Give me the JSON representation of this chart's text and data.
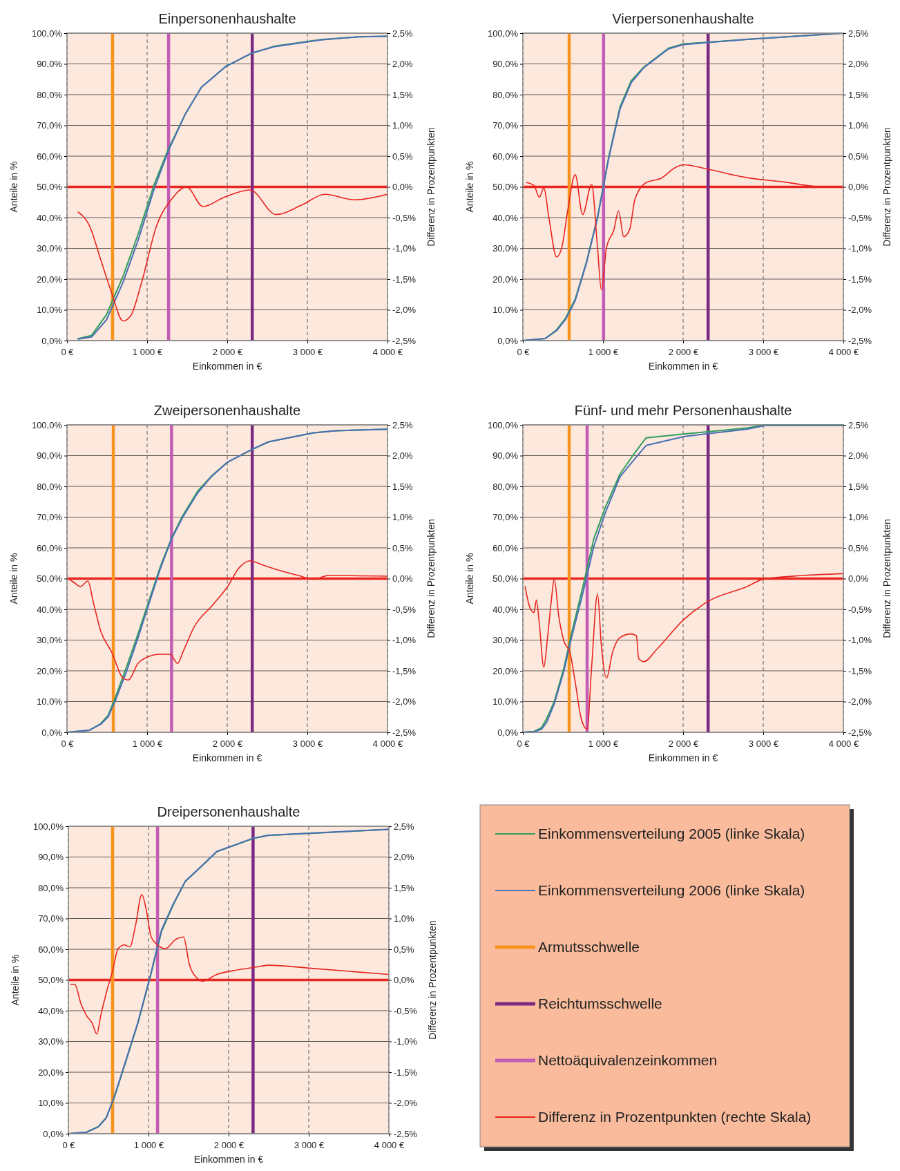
{
  "chart_data": [
    {
      "type": "line",
      "title": "Einpersonenhaushalte",
      "xlabel": "Einkommen in €",
      "ylabel": "Anteile in %",
      "y2label": "Differenz in Prozentpunkten",
      "xlim": [
        0,
        4000
      ],
      "ylim": [
        0,
        100
      ],
      "y2lim": [
        -2.5,
        2.5
      ],
      "xticks": [
        {
          "value": 0,
          "label": "0 €"
        },
        {
          "value": 1000,
          "label": "1 000 €"
        },
        {
          "value": 2000,
          "label": "2 000 €"
        },
        {
          "value": 3000,
          "label": "3 000 €"
        },
        {
          "value": 4000,
          "label": "4 000 €"
        }
      ],
      "yticks": [
        {
          "value": 0,
          "label": "0,0%"
        },
        {
          "value": 10,
          "label": "10,0%"
        },
        {
          "value": 20,
          "label": "20,0%"
        },
        {
          "value": 30,
          "label": "30,0%"
        },
        {
          "value": 40,
          "label": "40,0%"
        },
        {
          "value": 50,
          "label": "50,0%"
        },
        {
          "value": 60,
          "label": "60,0%"
        },
        {
          "value": 70,
          "label": "70,0%"
        },
        {
          "value": 80,
          "label": "80,0%"
        },
        {
          "value": 90,
          "label": "90,0%"
        },
        {
          "value": 100,
          "label": "100,0%"
        }
      ],
      "y2ticks": [
        {
          "value": -2.5,
          "label": "-2,5%"
        },
        {
          "value": -2,
          "label": "-2,0%"
        },
        {
          "value": -1.5,
          "label": "-1,5%"
        },
        {
          "value": -1,
          "label": "-1,0%"
        },
        {
          "value": -0.5,
          "label": "-0,5%"
        },
        {
          "value": 0,
          "label": "0,0%"
        },
        {
          "value": 0.5,
          "label": "0,5%"
        },
        {
          "value": 1,
          "label": "1,0%"
        },
        {
          "value": 1.5,
          "label": "1,5%"
        },
        {
          "value": 2,
          "label": "2,0%"
        },
        {
          "value": 2.5,
          "label": "2,5%"
        }
      ],
      "grid": true,
      "series": [
        {
          "color": "#2e9e5b",
          "x": [
            140,
            308,
            494,
            700,
            886,
            1091,
            1268,
            1483,
            1678,
            1986,
            2312,
            2592,
            3170,
            3636,
            4000
          ],
          "values": [
            0.6,
            1.7,
            8.5,
            21,
            34.5,
            51,
            62.5,
            74,
            82.4,
            89.3,
            93.5,
            95.8,
            97.9,
            98.8,
            99.0
          ]
        },
        {
          "color": "#4a6fb5",
          "x": [
            140,
            308,
            494,
            700,
            886,
            1091,
            1268,
            1483,
            1678,
            1986,
            2312,
            2592,
            3170,
            3636,
            4000
          ],
          "values": [
            0.5,
            1.2,
            6.8,
            19,
            32.5,
            49.6,
            61.9,
            74,
            82.4,
            89.2,
            93.6,
            95.6,
            97.8,
            98.8,
            99.0
          ]
        },
        {
          "color": "#e8251f",
          "axis": "y2",
          "x": [
            140,
            280,
            420,
            559,
            699,
            793,
            932,
            1119,
            1305,
            1492,
            1697,
            1958,
            2284,
            2611,
            2937,
            3217,
            3590,
            4000
          ],
          "values": [
            -0.41,
            -0.63,
            -1.18,
            -1.73,
            -2.18,
            -2.1,
            -1.55,
            -0.63,
            -0.2,
            0.0,
            -0.32,
            -0.17,
            -0.05,
            -0.45,
            -0.29,
            -0.12,
            -0.21,
            -0.12
          ]
        },
        {
          "color": "#f7931e",
          "x": [
            569,
            569
          ],
          "values": [
            0,
            100
          ]
        },
        {
          "color": "#7a2a82",
          "x": [
            2312,
            2312
          ],
          "values": [
            0,
            100
          ]
        },
        {
          "color": "#c25cb5",
          "x": [
            1268,
            1268
          ],
          "values": [
            0,
            100
          ]
        }
      ],
      "ref_lines": [
        {
          "axis": "y2",
          "value": 0,
          "color": "#e8251f"
        }
      ]
    },
    {
      "type": "line",
      "title": "Vierpersonenhaushalte",
      "xlabel": "Einkommen in €",
      "ylabel": "Anteile in %",
      "y2label": "Differenz in Prozentpunkten",
      "xlim": [
        0,
        4000
      ],
      "ylim": [
        0,
        100
      ],
      "y2lim": [
        -2.5,
        2.5
      ],
      "xticks": [
        {
          "value": 0,
          "label": "0 €"
        },
        {
          "value": 1000,
          "label": "1 000 €"
        },
        {
          "value": 2000,
          "label": "2 000 €"
        },
        {
          "value": 3000,
          "label": "3 000 €"
        },
        {
          "value": 4000,
          "label": "4 000 €"
        }
      ],
      "yticks": [
        {
          "value": 0,
          "label": "0,0%"
        },
        {
          "value": 10,
          "label": "10,0%"
        },
        {
          "value": 20,
          "label": "20,0%"
        },
        {
          "value": 30,
          "label": "30,0%"
        },
        {
          "value": 40,
          "label": "40,0%"
        },
        {
          "value": 50,
          "label": "50,0%"
        },
        {
          "value": 60,
          "label": "60,0%"
        },
        {
          "value": 70,
          "label": "70,0%"
        },
        {
          "value": 80,
          "label": "80,0%"
        },
        {
          "value": 90,
          "label": "90,0%"
        },
        {
          "value": 100,
          "label": "100,0%"
        }
      ],
      "y2ticks": [
        {
          "value": -2.5,
          "label": "-2,5%"
        },
        {
          "value": -2,
          "label": "-2,0%"
        },
        {
          "value": -1.5,
          "label": "-1,5%"
        },
        {
          "value": -1,
          "label": "-1,0%"
        },
        {
          "value": -0.5,
          "label": "-0,5%"
        },
        {
          "value": 0,
          "label": "0,0%"
        },
        {
          "value": 0.5,
          "label": "0,5%"
        },
        {
          "value": 1,
          "label": "1,0%"
        },
        {
          "value": 1.5,
          "label": "1,5%"
        },
        {
          "value": 2,
          "label": "2,0%"
        },
        {
          "value": 2.5,
          "label": "2,5%"
        }
      ],
      "grid": true,
      "series": [
        {
          "color": "#2e9e5b",
          "x": [
            0,
            280,
            420,
            531,
            653,
            793,
            932,
            1072,
            1212,
            1352,
            1510,
            1818,
            2005,
            2797,
            4000
          ],
          "values": [
            0,
            0.7,
            3.5,
            7.2,
            13.5,
            25.5,
            40.2,
            59.8,
            76,
            84.5,
            89,
            95.1,
            96.5,
            98,
            100
          ]
        },
        {
          "color": "#4a6fb5",
          "x": [
            0,
            280,
            420,
            531,
            653,
            793,
            932,
            1072,
            1212,
            1352,
            1510,
            1818,
            2005,
            2797,
            4000
          ],
          "values": [
            0,
            0.7,
            3.2,
            6.8,
            13,
            25.2,
            39.9,
            59.4,
            75.3,
            83.9,
            88.8,
            94.9,
            96.3,
            98,
            100
          ]
        },
        {
          "color": "#e8251f",
          "axis": "y2",
          "x": [
            47,
            140,
            205,
            261,
            326,
            420,
            485,
            559,
            653,
            746,
            858,
            932,
            979,
            1044,
            1138,
            1193,
            1259,
            1333,
            1399,
            1538,
            1725,
            1911,
            2005,
            2331,
            2797,
            3263,
            3730,
            4000
          ],
          "values": [
            0.07,
            0.02,
            -0.17,
            -0.02,
            -0.51,
            -1.14,
            -0.99,
            -0.39,
            0.2,
            -0.45,
            0.04,
            -0.99,
            -1.67,
            -0.99,
            -0.69,
            -0.39,
            -0.81,
            -0.69,
            -0.2,
            0.07,
            0.14,
            0.32,
            0.36,
            0.28,
            0.15,
            0.08,
            0.0,
            0.0
          ]
        },
        {
          "color": "#f7931e",
          "x": [
            578,
            578
          ],
          "values": [
            0,
            100
          ]
        },
        {
          "color": "#7a2a82",
          "x": [
            2312,
            2312
          ],
          "values": [
            0,
            100
          ]
        },
        {
          "color": "#c25cb5",
          "x": [
            1007,
            1007
          ],
          "values": [
            0,
            100
          ]
        }
      ],
      "ref_lines": [
        {
          "axis": "y2",
          "value": 0,
          "color": "#e8251f"
        }
      ]
    },
    {
      "type": "line",
      "title": "Zweipersonenhaushalte",
      "xlabel": "Einkommen in €",
      "ylabel": "Anteile in %",
      "y2label": "Differenz in Prozentpunkten",
      "xlim": [
        0,
        4000
      ],
      "ylim": [
        0,
        100
      ],
      "y2lim": [
        -2.5,
        2.5
      ],
      "xticks": [
        {
          "value": 0,
          "label": "0 €"
        },
        {
          "value": 1000,
          "label": "1 000 €"
        },
        {
          "value": 2000,
          "label": "2 000 €"
        },
        {
          "value": 3000,
          "label": "3 000 €"
        },
        {
          "value": 4000,
          "label": "4 000 €"
        }
      ],
      "yticks": [
        {
          "value": 0,
          "label": "0,0%"
        },
        {
          "value": 10,
          "label": "10,0%"
        },
        {
          "value": 20,
          "label": "20,0%"
        },
        {
          "value": 30,
          "label": "30,0%"
        },
        {
          "value": 40,
          "label": "40,0%"
        },
        {
          "value": 50,
          "label": "50,0%"
        },
        {
          "value": 60,
          "label": "60,0%"
        },
        {
          "value": 70,
          "label": "70,0%"
        },
        {
          "value": 80,
          "label": "80,0%"
        },
        {
          "value": 90,
          "label": "90,0%"
        },
        {
          "value": 100,
          "label": "100,0%"
        }
      ],
      "y2ticks": [
        {
          "value": -2.5,
          "label": "-2,5%"
        },
        {
          "value": -2,
          "label": "-2,0%"
        },
        {
          "value": -1.5,
          "label": "-1,5%"
        },
        {
          "value": -1,
          "label": "-1,0%"
        },
        {
          "value": -0.5,
          "label": "-0,5%"
        },
        {
          "value": 0,
          "label": "0,0%"
        },
        {
          "value": 0.5,
          "label": "0,5%"
        },
        {
          "value": 1,
          "label": "1,0%"
        },
        {
          "value": 1.5,
          "label": "1,5%"
        },
        {
          "value": 2,
          "label": "2,0%"
        },
        {
          "value": 2.5,
          "label": "2,5%"
        }
      ],
      "grid": true,
      "series": [
        {
          "color": "#2e9e5b",
          "x": [
            0,
            280,
            420,
            513,
            606,
            746,
            886,
            1026,
            1166,
            1305,
            1445,
            1632,
            1800,
            2005,
            2312,
            2517,
            3077,
            3357,
            4000
          ],
          "values": [
            0,
            0.7,
            2.8,
            5.5,
            11.5,
            21.5,
            32,
            43,
            54,
            63.2,
            70.5,
            78.5,
            83.3,
            87.9,
            92,
            94.5,
            97.4,
            98.1,
            98.6
          ]
        },
        {
          "color": "#4a6fb5",
          "x": [
            0,
            280,
            420,
            513,
            606,
            746,
            886,
            1026,
            1166,
            1305,
            1445,
            1632,
            1800,
            2005,
            2312,
            2517,
            3077,
            3357,
            4000
          ],
          "values": [
            0,
            0.7,
            2.6,
            5,
            10.5,
            20,
            30.7,
            42.1,
            53.3,
            62.9,
            70,
            77.9,
            83.1,
            87.9,
            92.1,
            94.5,
            97.4,
            98.1,
            98.6
          ]
        },
        {
          "color": "#e8251f",
          "axis": "y2",
          "x": [
            19,
            93,
            168,
            261,
            326,
            420,
            559,
            699,
            765,
            886,
            979,
            1166,
            1287,
            1380,
            1445,
            1585,
            1818,
            2005,
            2145,
            2284,
            2424,
            2611,
            2890,
            3077,
            3263,
            4000
          ],
          "values": [
            0,
            -0.07,
            -0.13,
            -0.04,
            -0.37,
            -0.85,
            -1.2,
            -1.62,
            -1.65,
            -1.38,
            -1.29,
            -1.23,
            -1.23,
            -1.38,
            -1.2,
            -0.79,
            -0.43,
            -0.13,
            0.17,
            0.29,
            0.23,
            0.15,
            0.05,
            -0.01,
            0.05,
            0.04
          ]
        },
        {
          "color": "#f7931e",
          "x": [
            578,
            578
          ],
          "values": [
            0,
            100
          ]
        },
        {
          "color": "#7a2a82",
          "x": [
            2312,
            2312
          ],
          "values": [
            0,
            100
          ]
        },
        {
          "color": "#c25cb5",
          "x": [
            1305,
            1305
          ],
          "values": [
            0,
            100
          ]
        }
      ],
      "ref_lines": [
        {
          "axis": "y2",
          "value": 0,
          "color": "#e8251f"
        }
      ]
    },
    {
      "type": "line",
      "title": "Fünf- und mehr Personenhaushalte",
      "xlabel": "Einkommen in €",
      "ylabel": "Anteile in %",
      "y2label": "Differenz in Prozentpunkten",
      "xlim": [
        0,
        4000
      ],
      "ylim": [
        0,
        100
      ],
      "y2lim": [
        -2.5,
        2.5
      ],
      "xticks": [
        {
          "value": 0,
          "label": "0 €"
        },
        {
          "value": 1000,
          "label": "1 000 €"
        },
        {
          "value": 2000,
          "label": "2 000 €"
        },
        {
          "value": 3000,
          "label": "3 000 €"
        },
        {
          "value": 4000,
          "label": "4 000 €"
        }
      ],
      "yticks": [
        {
          "value": 0,
          "label": "0,0%"
        },
        {
          "value": 10,
          "label": "10,0%"
        },
        {
          "value": 20,
          "label": "20,0%"
        },
        {
          "value": 30,
          "label": "30,0%"
        },
        {
          "value": 40,
          "label": "40,0%"
        },
        {
          "value": 50,
          "label": "50,0%"
        },
        {
          "value": 60,
          "label": "60,0%"
        },
        {
          "value": 70,
          "label": "70,0%"
        },
        {
          "value": 80,
          "label": "80,0%"
        },
        {
          "value": 90,
          "label": "90,0%"
        },
        {
          "value": 100,
          "label": "100,0%"
        }
      ],
      "y2ticks": [
        {
          "value": -2.5,
          "label": "-2,5%"
        },
        {
          "value": -2,
          "label": "-2,0%"
        },
        {
          "value": -1.5,
          "label": "-1,5%"
        },
        {
          "value": -1,
          "label": "-1,0%"
        },
        {
          "value": -0.5,
          "label": "-0,5%"
        },
        {
          "value": 0,
          "label": "0,0%"
        },
        {
          "value": 0.5,
          "label": "0,5%"
        },
        {
          "value": 1,
          "label": "1,0%"
        },
        {
          "value": 1.5,
          "label": "1,5%"
        },
        {
          "value": 2,
          "label": "2,0%"
        },
        {
          "value": 2.5,
          "label": "2,5%"
        }
      ],
      "grid": true,
      "series": [
        {
          "color": "#2e9e5b",
          "x": [
            0,
            140,
            233,
            298,
            392,
            513,
            606,
            746,
            886,
            1026,
            1212,
            1399,
            1538,
            2005,
            2797,
            3030,
            4000
          ],
          "values": [
            0,
            0.3,
            1.5,
            4.5,
            10,
            21,
            32,
            47,
            63,
            73,
            84,
            91,
            95.8,
            97,
            99,
            100,
            100
          ]
        },
        {
          "color": "#4a6fb5",
          "x": [
            0,
            140,
            233,
            298,
            392,
            513,
            606,
            746,
            886,
            1026,
            1212,
            1399,
            1538,
            2005,
            2797,
            3030,
            4000
          ],
          "values": [
            0,
            0.2,
            1,
            3.3,
            9.3,
            20,
            30.7,
            45,
            60.5,
            71.2,
            83.1,
            89,
            93.3,
            96.2,
            98.6,
            99.8,
            99.8
          ]
        },
        {
          "color": "#e8251f",
          "axis": "y2",
          "x": [
            28,
            93,
            140,
            168,
            205,
            261,
            308,
            354,
            392,
            448,
            513,
            587,
            653,
            727,
            802,
            858,
            932,
            979,
            1044,
            1119,
            1212,
            1352,
            1417,
            1445,
            1510,
            1678,
            2005,
            2312,
            2797,
            3002,
            3497,
            4000
          ],
          "values": [
            -0.13,
            -0.49,
            -0.55,
            -0.35,
            -0.73,
            -1.44,
            -0.96,
            -0.37,
            -0.01,
            -0.61,
            -1.02,
            -1.2,
            -1.68,
            -2.27,
            -2.45,
            -1.44,
            -0.25,
            -1.08,
            -1.62,
            -1.2,
            -0.96,
            -0.9,
            -0.93,
            -1.3,
            -1.35,
            -1.14,
            -0.67,
            -0.37,
            -0.13,
            -0.01,
            0.05,
            0.08
          ]
        },
        {
          "color": "#f7931e",
          "x": [
            578,
            578
          ],
          "values": [
            0,
            100
          ]
        },
        {
          "color": "#7a2a82",
          "x": [
            2312,
            2312
          ],
          "values": [
            0,
            100
          ]
        },
        {
          "color": "#c25cb5",
          "x": [
            802,
            802
          ],
          "values": [
            0,
            100
          ]
        }
      ],
      "ref_lines": [
        {
          "axis": "y2",
          "value": 0,
          "color": "#e8251f"
        }
      ]
    },
    {
      "type": "line",
      "title": "Dreipersonenhaushalte",
      "xlabel": "Einkommen in €",
      "ylabel": "Anteile in %",
      "y2label": "Differenz in Prozentpunkten",
      "xlim": [
        0,
        4000
      ],
      "ylim": [
        0,
        100
      ],
      "y2lim": [
        -2.5,
        2.5
      ],
      "xticks": [
        {
          "value": 0,
          "label": "0 €"
        },
        {
          "value": 1000,
          "label": "1 000 €"
        },
        {
          "value": 2000,
          "label": "2 000 €"
        },
        {
          "value": 3000,
          "label": "3 000 €"
        },
        {
          "value": 4000,
          "label": "4 000 €"
        }
      ],
      "yticks": [
        {
          "value": 0,
          "label": "0,0%"
        },
        {
          "value": 10,
          "label": "10,0%"
        },
        {
          "value": 20,
          "label": "20,0%"
        },
        {
          "value": 30,
          "label": "30,0%"
        },
        {
          "value": 40,
          "label": "40,0%"
        },
        {
          "value": 50,
          "label": "50,0%"
        },
        {
          "value": 60,
          "label": "60,0%"
        },
        {
          "value": 70,
          "label": "70,0%"
        },
        {
          "value": 80,
          "label": "80,0%"
        },
        {
          "value": 90,
          "label": "90,0%"
        },
        {
          "value": 100,
          "label": "100,0%"
        }
      ],
      "y2ticks": [
        {
          "value": -2.5,
          "label": "-2,5%"
        },
        {
          "value": -2,
          "label": "-2,0%"
        },
        {
          "value": -1.5,
          "label": "-1,5%"
        },
        {
          "value": -1,
          "label": "-1,0%"
        },
        {
          "value": -0.5,
          "label": "-0,5%"
        },
        {
          "value": 0,
          "label": "0,0%"
        },
        {
          "value": 0.5,
          "label": "0,5%"
        },
        {
          "value": 1,
          "label": "1,0%"
        },
        {
          "value": 1.5,
          "label": "1,5%"
        },
        {
          "value": 2,
          "label": "2,0%"
        },
        {
          "value": 2.5,
          "label": "2,5%"
        }
      ],
      "grid": true,
      "legend": "right",
      "series": [
        {
          "name": "Einkommensverteilung 2005 (linke Skala)",
          "color": "#2e9e5b",
          "x": [
            0,
            227,
            374,
            473,
            571,
            719,
            867,
            1015,
            1163,
            1310,
            1458,
            1655,
            1852,
            2305,
            2493,
            4000
          ],
          "values": [
            0,
            0.5,
            2.3,
            5.3,
            11.6,
            23.6,
            35.9,
            50.3,
            65.8,
            74.5,
            82,
            86.8,
            91.7,
            96,
            97,
            99.0
          ]
        },
        {
          "name": "Einkommensverteilung 2006 (linke Skala)",
          "color": "#4a6fb5",
          "x": [
            0,
            227,
            374,
            473,
            571,
            719,
            867,
            1015,
            1163,
            1310,
            1458,
            1655,
            1852,
            2305,
            2493,
            4000
          ],
          "values": [
            0,
            0.5,
            2.2,
            5.1,
            11.9,
            24,
            36.1,
            50.6,
            66.3,
            74.8,
            82.1,
            86.9,
            91.8,
            96.1,
            97.1,
            99.0
          ]
        },
        {
          "name": "Armutsschwelle",
          "color": "#f7931e",
          "x": [
            552,
            552
          ],
          "values": [
            0,
            100
          ]
        },
        {
          "name": "Reichtumsschwelle",
          "color": "#7a2a82",
          "x": [
            2305,
            2305
          ],
          "values": [
            0,
            100
          ]
        },
        {
          "name": "Nettoäquivalenzeinkommen",
          "color": "#c25cb5",
          "x": [
            1113,
            1113
          ],
          "values": [
            0,
            100
          ]
        },
        {
          "name": "Differenz in Prozentpunkten (rechte Skala)",
          "color": "#e8251f",
          "axis": "y2",
          "x": [
            30,
            79,
            158,
            227,
            296,
            355,
            404,
            473,
            552,
            621,
            700,
            768,
            837,
            916,
            966,
            1034,
            1113,
            1212,
            1340,
            1438,
            1507,
            1606,
            1675,
            1852,
            2049,
            2345,
            2493,
            3034,
            4000
          ],
          "values": [
            -0.07,
            -0.07,
            -0.39,
            -0.58,
            -0.7,
            -0.88,
            -0.58,
            -0.21,
            0.15,
            0.51,
            0.57,
            0.54,
            0.88,
            1.39,
            1.18,
            0.7,
            0.57,
            0.51,
            0.66,
            0.7,
            0.27,
            0.03,
            -0.02,
            0.09,
            0.15,
            0.21,
            0.24,
            0.19,
            0.09
          ]
        }
      ],
      "ref_lines": [
        {
          "axis": "y2",
          "value": 0,
          "color": "#e8251f"
        }
      ]
    }
  ]
}
